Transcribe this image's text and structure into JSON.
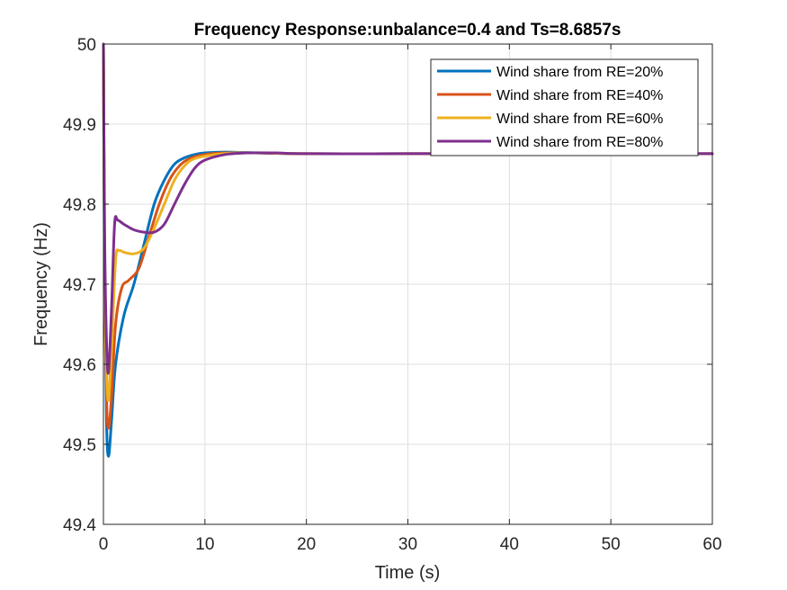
{
  "chart_data": {
    "type": "line",
    "title": "Frequency Response:unbalance=0.4 and Ts=8.6857s",
    "xlabel": "Time (s)",
    "ylabel": "Frequency (Hz)",
    "xlim": [
      0,
      60
    ],
    "ylim": [
      49.4,
      50
    ],
    "xticks": [
      0,
      10,
      20,
      30,
      40,
      50,
      60
    ],
    "yticks": [
      49.4,
      49.5,
      49.6,
      49.7,
      49.8,
      49.9,
      50
    ],
    "grid": true,
    "legend_position": "top-right",
    "series": [
      {
        "name": "Wind share from RE=20%",
        "color": "#0072BD",
        "points": [
          [
            0,
            50
          ],
          [
            0.12,
            49.7
          ],
          [
            0.3,
            49.53
          ],
          [
            0.5,
            49.485
          ],
          [
            0.8,
            49.53
          ],
          [
            1.2,
            49.6
          ],
          [
            2,
            49.66
          ],
          [
            3,
            49.7
          ],
          [
            4,
            49.75
          ],
          [
            5,
            49.8
          ],
          [
            6,
            49.83
          ],
          [
            7,
            49.85
          ],
          [
            8,
            49.858
          ],
          [
            9,
            49.862
          ],
          [
            10,
            49.864
          ],
          [
            12,
            49.865
          ],
          [
            15,
            49.864
          ],
          [
            20,
            49.863
          ],
          [
            30,
            49.863
          ],
          [
            40,
            49.863
          ],
          [
            50,
            49.863
          ],
          [
            60,
            49.863
          ]
        ]
      },
      {
        "name": "Wind share from RE=40%",
        "color": "#D95319",
        "points": [
          [
            0,
            50
          ],
          [
            0.12,
            49.72
          ],
          [
            0.3,
            49.56
          ],
          [
            0.5,
            49.52
          ],
          [
            0.8,
            49.56
          ],
          [
            1.2,
            49.65
          ],
          [
            1.8,
            49.695
          ],
          [
            2.5,
            49.705
          ],
          [
            3.5,
            49.72
          ],
          [
            4.5,
            49.76
          ],
          [
            5.5,
            49.8
          ],
          [
            6.5,
            49.83
          ],
          [
            7.5,
            49.848
          ],
          [
            8.5,
            49.857
          ],
          [
            10,
            49.862
          ],
          [
            12,
            49.864
          ],
          [
            15,
            49.864
          ],
          [
            20,
            49.863
          ],
          [
            30,
            49.863
          ],
          [
            40,
            49.863
          ],
          [
            50,
            49.863
          ],
          [
            60,
            49.863
          ]
        ]
      },
      {
        "name": "Wind share from RE=60%",
        "color": "#EDB120",
        "points": [
          [
            0,
            50
          ],
          [
            0.12,
            49.74
          ],
          [
            0.3,
            49.6
          ],
          [
            0.5,
            49.555
          ],
          [
            0.8,
            49.62
          ],
          [
            1.2,
            49.73
          ],
          [
            1.5,
            49.742
          ],
          [
            2,
            49.74
          ],
          [
            3,
            49.738
          ],
          [
            4,
            49.745
          ],
          [
            5,
            49.77
          ],
          [
            6,
            49.8
          ],
          [
            7,
            49.83
          ],
          [
            8,
            49.848
          ],
          [
            9,
            49.857
          ],
          [
            11,
            49.862
          ],
          [
            13,
            49.864
          ],
          [
            16,
            49.864
          ],
          [
            20,
            49.863
          ],
          [
            30,
            49.863
          ],
          [
            40,
            49.863
          ],
          [
            50,
            49.863
          ],
          [
            60,
            49.863
          ]
        ]
      },
      {
        "name": "Wind share from RE=80%",
        "color": "#7E2F8E",
        "points": [
          [
            0,
            50
          ],
          [
            0.12,
            49.76
          ],
          [
            0.3,
            49.63
          ],
          [
            0.5,
            49.59
          ],
          [
            0.8,
            49.67
          ],
          [
            1.1,
            49.775
          ],
          [
            1.4,
            49.78
          ],
          [
            2,
            49.775
          ],
          [
            3,
            49.768
          ],
          [
            4,
            49.765
          ],
          [
            5,
            49.765
          ],
          [
            6,
            49.775
          ],
          [
            7,
            49.8
          ],
          [
            8,
            49.825
          ],
          [
            9,
            49.845
          ],
          [
            10,
            49.855
          ],
          [
            12,
            49.862
          ],
          [
            14,
            49.864
          ],
          [
            17,
            49.864
          ],
          [
            20,
            49.863
          ],
          [
            30,
            49.863
          ],
          [
            40,
            49.863
          ],
          [
            50,
            49.863
          ],
          [
            60,
            49.863
          ]
        ]
      }
    ]
  }
}
